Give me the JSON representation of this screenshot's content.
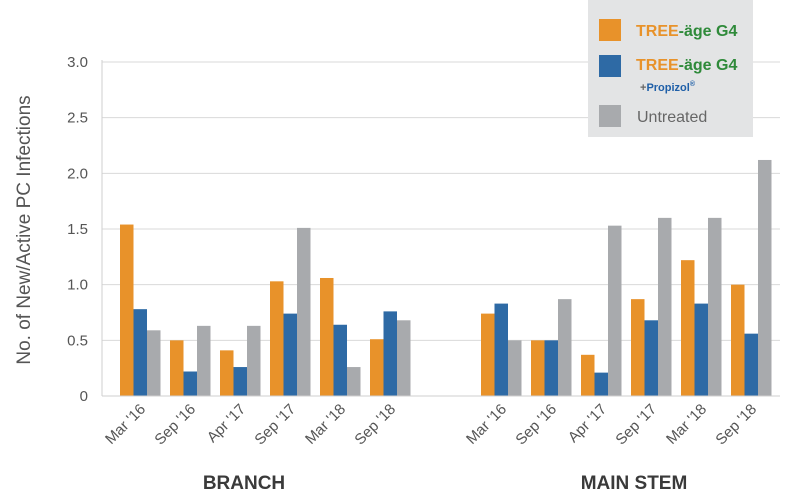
{
  "chart_data": {
    "type": "bar",
    "ylabel": "No. of New/Active PC Infections",
    "ylim": [
      0,
      3.0
    ],
    "yticks": [
      "0",
      "0.5",
      "1.0",
      "1.5",
      "2.0",
      "2.5",
      "3.0"
    ],
    "grid": true,
    "legend_position": "top-right",
    "groups": [
      {
        "name": "BRANCH",
        "categories": [
          "Mar '16",
          "Sep '16",
          "Apr '17",
          "Sep '17",
          "Mar '18",
          "Sep '18"
        ],
        "series": [
          {
            "name": "TREE-äge G4",
            "color": "#e8922a",
            "values": [
              1.54,
              0.5,
              0.41,
              1.03,
              1.06,
              0.51
            ]
          },
          {
            "name": "TREE-äge G4 + Propizol",
            "color": "#2e6aa5",
            "values": [
              0.78,
              0.22,
              0.26,
              0.74,
              0.64,
              0.76
            ]
          },
          {
            "name": "Untreated",
            "color": "#a8aaad",
            "values": [
              0.59,
              0.63,
              0.63,
              1.51,
              0.26,
              0.68
            ]
          }
        ]
      },
      {
        "name": "MAIN STEM",
        "categories": [
          "Mar '16",
          "Sep '16",
          "Apr '17",
          "Sep '17",
          "Mar '18",
          "Sep '18"
        ],
        "series": [
          {
            "name": "TREE-äge G4",
            "color": "#e8922a",
            "values": [
              0.74,
              0.5,
              0.37,
              0.87,
              1.22,
              1.0
            ]
          },
          {
            "name": "TREE-äge G4 + Propizol",
            "color": "#2e6aa5",
            "values": [
              0.83,
              0.5,
              0.21,
              0.68,
              0.83,
              0.56
            ]
          },
          {
            "name": "Untreated",
            "color": "#a8aaad",
            "values": [
              0.5,
              0.87,
              1.53,
              1.6,
              1.6,
              2.12
            ]
          }
        ]
      }
    ],
    "legend": {
      "items": [
        {
          "key": "g4",
          "color": "#e8922a",
          "brand_a": "TREE",
          "brand_b": "-äge G4"
        },
        {
          "key": "g4p",
          "color": "#2e6aa5",
          "brand_a": "TREE",
          "brand_b": "-äge G4",
          "plus": "+",
          "sub_brand": "Propizol",
          "sub_mark": "®"
        },
        {
          "key": "untreated",
          "color": "#a8aaad",
          "label": "Untreated"
        }
      ]
    },
    "colors": {
      "tree_orange": "#e8922a",
      "age_green": "#2f8a3a",
      "propizol_blue": "#1f5fa8"
    }
  }
}
